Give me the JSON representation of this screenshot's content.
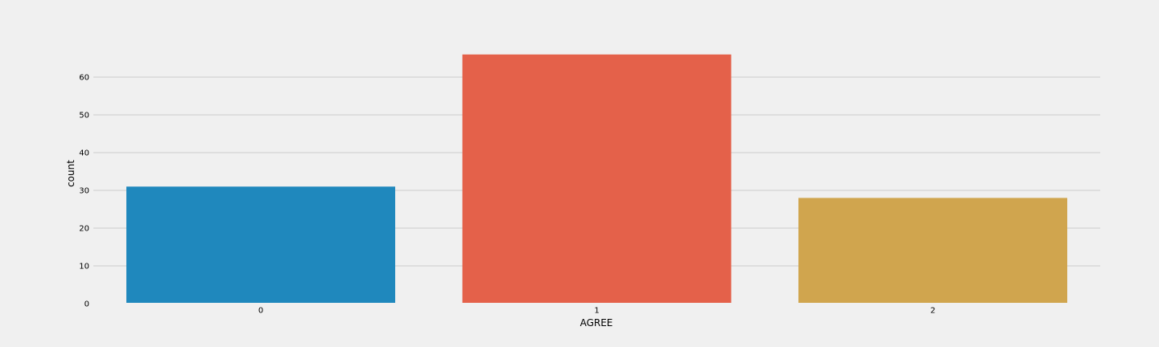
{
  "chart_data": {
    "type": "bar",
    "xlabel": "AGREE",
    "ylabel": "count",
    "categories": [
      "0",
      "1",
      "2"
    ],
    "values": [
      31,
      66,
      28
    ],
    "colors": [
      "#1f88bd",
      "#e4614a",
      "#d0a54e"
    ],
    "ylim": [
      0,
      70
    ],
    "yticks": [
      0,
      10,
      20,
      30,
      40,
      50,
      60
    ],
    "grid": "horizontal",
    "background": "#f0f0f0",
    "grid_color": "#cbcbcb"
  }
}
